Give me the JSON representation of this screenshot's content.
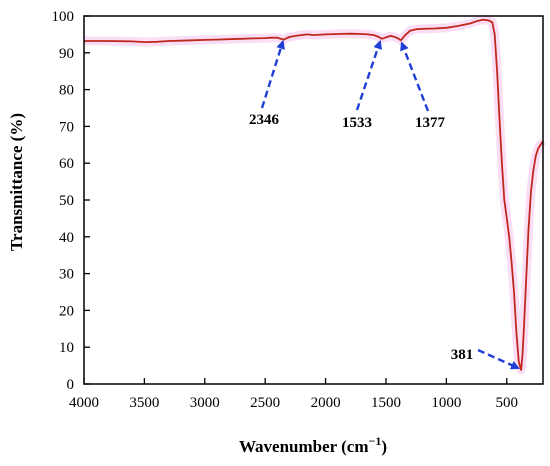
{
  "chart_data": {
    "type": "line",
    "xlabel_main": "Wavenumber (cm",
    "xlabel_sup": "−1",
    "xlabel_end": ")",
    "ylabel": "Transmittance (%)",
    "xlim": [
      4000,
      200
    ],
    "ylim": [
      0,
      100
    ],
    "x_ticks": [
      4000,
      3500,
      3000,
      2500,
      2000,
      1500,
      1000,
      500
    ],
    "y_ticks": [
      0,
      10,
      20,
      30,
      40,
      50,
      60,
      70,
      80,
      90,
      100
    ],
    "line_color": "#c0281e",
    "halo_color": "#f5c2ec",
    "arrow_color": "#1f3fd6",
    "series": [
      {
        "x": [
          4000,
          3800,
          3600,
          3500,
          3400,
          3300,
          3200,
          3100,
          3000,
          2900,
          2800,
          2700,
          2600,
          2500,
          2450,
          2400,
          2346,
          2300,
          2250,
          2200,
          2150,
          2100,
          2000,
          1900,
          1800,
          1700,
          1650,
          1600,
          1560,
          1533,
          1500,
          1460,
          1420,
          1400,
          1377,
          1340,
          1300,
          1250,
          1200,
          1100,
          1000,
          900,
          800,
          750,
          700,
          650,
          620,
          600,
          580,
          560,
          540,
          520,
          500,
          480,
          460,
          440,
          420,
          400,
          381,
          370,
          360,
          340,
          320,
          300,
          280,
          260,
          240,
          220,
          200
        ],
        "y": [
          93.2,
          93.2,
          93.1,
          92.9,
          93.0,
          93.2,
          93.3,
          93.4,
          93.5,
          93.6,
          93.7,
          93.8,
          93.9,
          94.0,
          94.1,
          94.1,
          93.6,
          94.3,
          94.6,
          94.8,
          95.0,
          94.8,
          95.0,
          95.1,
          95.2,
          95.1,
          95.0,
          94.8,
          94.3,
          93.8,
          94.2,
          94.6,
          94.2,
          93.9,
          93.4,
          94.8,
          96.0,
          96.4,
          96.5,
          96.6,
          96.8,
          97.3,
          98.0,
          98.6,
          99.0,
          98.8,
          98.3,
          95.0,
          85.0,
          72.0,
          60.0,
          50.0,
          45.0,
          40.0,
          33.0,
          25.0,
          14.0,
          6.0,
          3.8,
          8.0,
          14.0,
          28.0,
          42.0,
          52.0,
          58.0,
          62.0,
          64.0,
          65.0,
          66.0
        ]
      }
    ],
    "annotations": [
      {
        "label": "2346",
        "x": 2346,
        "y": 93.8
      },
      {
        "label": "1533",
        "x": 1533,
        "y": 93.8
      },
      {
        "label": "1377",
        "x": 1377,
        "y": 93.4
      },
      {
        "label": "381",
        "x": 381,
        "y": 3.8
      }
    ]
  }
}
